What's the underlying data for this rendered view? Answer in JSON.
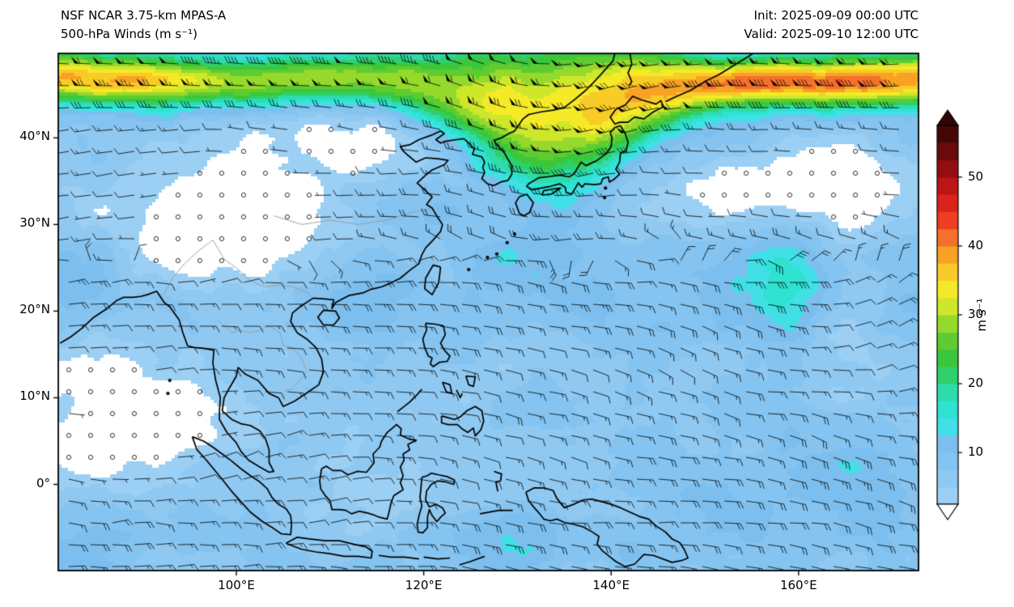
{
  "header": {
    "title_line1": "NSF NCAR 3.75-km MPAS-A",
    "title_line2": "500-hPa Winds (m s⁻¹)",
    "init_label": "Init: 2025-09-09 00:00 UTC",
    "valid_label": "Valid: 2025-09-10 12:00 UTC"
  },
  "chart_data": {
    "type": "heatmap",
    "overlay": "wind barbs",
    "title": "500-hPa Winds (m s⁻¹)",
    "model": "NSF NCAR 3.75-km MPAS-A",
    "init_time": "2025-09-09 00:00 UTC",
    "valid_time": "2025-09-10 12:00 UTC",
    "field": "Wind speed at 500 hPa shown as filled contours with wind barbs over East Asia and the western Pacific",
    "x_axis": {
      "tick_labels": [
        "100°E",
        "120°E",
        "140°E",
        "160°E"
      ],
      "tick_values": [
        100,
        120,
        140,
        160
      ]
    },
    "y_axis": {
      "tick_labels": [
        "40°N",
        "30°N",
        "20°N",
        "10°N",
        "0°"
      ],
      "tick_values": [
        40,
        30,
        20,
        10,
        0
      ]
    },
    "extent_estimate": {
      "lon_min_e": 81.0,
      "lon_max_e": 172.8,
      "lat_min_n": -9.95,
      "lat_max_n": 49.75
    },
    "colorbar": {
      "label": "m s⁻¹",
      "tick_values": [
        10,
        20,
        30,
        40,
        50
      ],
      "min": 2.5,
      "max": 57.5,
      "band_width": 2.5,
      "band_colors": [
        "#9bcff4",
        "#8fc9f2",
        "#85c4f0",
        "#7cbfee",
        "#40e0e6",
        "#2fe2d2",
        "#2edcab",
        "#2fd06b",
        "#3bc73c",
        "#5ecc31",
        "#95d92c",
        "#cfe72a",
        "#f4ea28",
        "#f8cb27",
        "#f8a124",
        "#f4702b",
        "#ee3d23",
        "#da231c",
        "#bb1614",
        "#930e10",
        "#6b0a0b",
        "#460606"
      ],
      "under_color": "#ffffff",
      "over_color": "#300404"
    },
    "barb_convention": {
      "units": "m s⁻¹",
      "half_barb": 2.5,
      "full_barb": 5,
      "pennant": 25,
      "calm_symbol": "circle"
    },
    "notable_features": [
      "Westerly jet stream along 40–48°N with speeds of 30–45 m s⁻¹, strongest (yellow/orange) over the northwest Pacific east of Japan and in the far northwest corner",
      "Jet dips southward over Korea and the Sea of Japan (green tongue reaching ~35°N)",
      "Weak winds (<5 m s⁻¹, white with calm circles) over southern China and along the subtropical ridge near 30°N east of Japan",
      "Broad 5–15 m s⁻¹ (light blue to cyan) flow across the tropics, South China Sea and western Pacific",
      "Cyan/green streak near 158°E, 20–25°N and enhanced cyan over the far southeastern corner"
    ]
  }
}
